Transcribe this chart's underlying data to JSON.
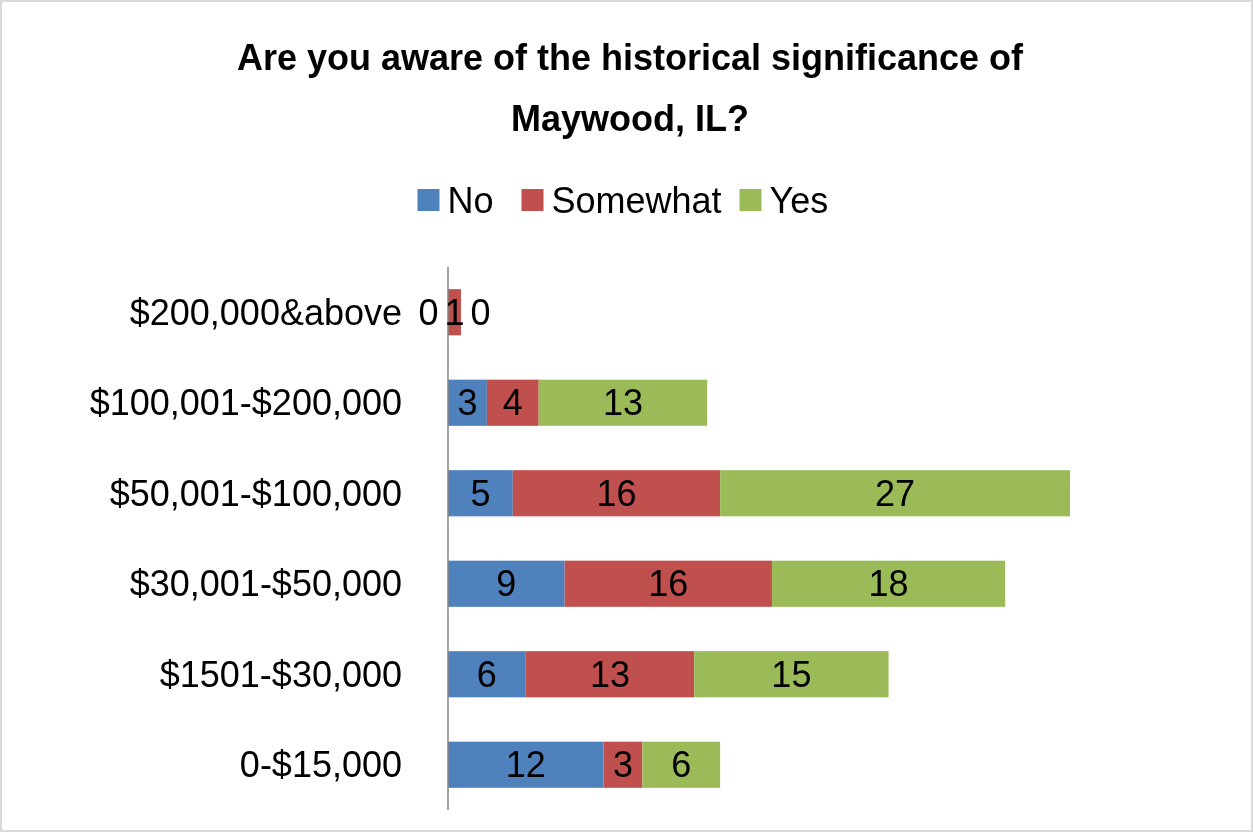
{
  "chart_data": {
    "type": "bar",
    "orientation": "horizontal",
    "stacked": true,
    "title": "Are you aware of the historical significance of Maywood, IL?",
    "categories": [
      "$200,000&above",
      "$100,001-$200,000",
      "$50,001-$100,000",
      "$30,001-$50,000",
      "$1501-$30,000",
      "0-$15,000"
    ],
    "series": [
      {
        "name": "No",
        "color": "#4f81bd",
        "values": [
          0,
          3,
          5,
          9,
          6,
          12
        ]
      },
      {
        "name": "Somewhat",
        "color": "#c0504d",
        "values": [
          1,
          4,
          16,
          16,
          13,
          3
        ]
      },
      {
        "name": "Yes",
        "color": "#9bbb59",
        "values": [
          0,
          13,
          27,
          18,
          15,
          6
        ]
      }
    ],
    "data_labels": true,
    "legend": "top"
  }
}
